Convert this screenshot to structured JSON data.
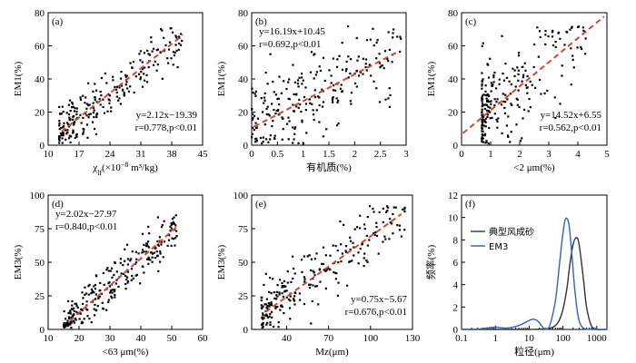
{
  "colors": {
    "fit": "#d9442a",
    "dune": "#333333",
    "em3": "#2e64b8"
  },
  "chart_data": [
    {
      "id": "a",
      "type": "scatter",
      "panel_label": "(a)",
      "xlabel": "χ",
      "xlabel_sub": "lf",
      "xlabel_rest": "(×10",
      "xlabel_sup": "−8",
      "xlabel_end": " m³/kg)",
      "ylabel": "EM1(%)",
      "xlim": [
        10,
        45
      ],
      "ylim": [
        0,
        80
      ],
      "xticks": [
        10,
        17,
        24,
        31,
        38,
        45
      ],
      "yticks": [
        0,
        20,
        40,
        60,
        80
      ],
      "fit": {
        "slope": 2.12,
        "intercept": -19.39,
        "x_range": [
          13,
          40.5
        ]
      },
      "annotation": [
        "y=2.12x−19.39",
        "r=0.778,p<0.01"
      ],
      "annotation_pos": "bottom-right",
      "cluster": {
        "n": 240,
        "x_range": [
          12.5,
          40.5
        ],
        "noise": 7.5,
        "x_skew": 1.7
      }
    },
    {
      "id": "b",
      "type": "scatter",
      "panel_label": "(b)",
      "xlabel": "有机质(%)",
      "ylabel": "EM1(%)",
      "xlim": [
        0,
        3.0
      ],
      "ylim": [
        0,
        80
      ],
      "xticks": [
        0,
        0.5,
        1.0,
        1.5,
        2.0,
        2.5,
        3.0
      ],
      "yticks": [
        0,
        20,
        40,
        60,
        80
      ],
      "fit": {
        "slope": 16.19,
        "intercept": 10.45,
        "x_range": [
          0.05,
          2.85
        ]
      },
      "annotation": [
        "y=16.19x+10.45",
        "r=0.692,p<0.01"
      ],
      "annotation_pos": "top-left",
      "cluster": {
        "n": 240,
        "x_range": [
          0.0,
          2.9
        ],
        "noise": 12,
        "x_skew": 1.4
      }
    },
    {
      "id": "c",
      "type": "scatter",
      "panel_label": "(c)",
      "xlabel": "<2 μm(%)",
      "ylabel": "EM1(%)",
      "xlim": [
        0,
        5
      ],
      "ylim": [
        0,
        80
      ],
      "xticks": [
        0,
        1,
        2,
        3,
        4,
        5
      ],
      "yticks": [
        0,
        20,
        40,
        60,
        80
      ],
      "fit": {
        "slope": 14.52,
        "intercept": 6.55,
        "x_range": [
          0.05,
          4.9
        ]
      },
      "annotation": [
        "y=14.52x+6.55",
        "r=0.562,p<0.01"
      ],
      "annotation_pos": "bottom-right",
      "cluster": {
        "n": 230,
        "x_range": [
          0.7,
          4.3
        ],
        "noise": 14,
        "x_skew": 2.6
      }
    },
    {
      "id": "d",
      "type": "scatter",
      "panel_label": "(d)",
      "xlabel": "<63 μm(%)",
      "ylabel": "EM3(%)",
      "xlim": [
        10,
        60
      ],
      "ylim": [
        0,
        100
      ],
      "xticks": [
        10,
        20,
        30,
        40,
        50,
        60
      ],
      "yticks": [
        0,
        25,
        50,
        75,
        100
      ],
      "fit": {
        "slope": 2.02,
        "intercept": -27.97,
        "x_range": [
          17,
          51.5
        ]
      },
      "annotation": [
        "y=2.02x−27.97",
        "r=0.840,p<0.01"
      ],
      "annotation_pos": "top-left",
      "cluster": {
        "n": 260,
        "x_range": [
          15,
          52
        ],
        "noise": 8,
        "x_skew": 1.3
      }
    },
    {
      "id": "e",
      "type": "scatter",
      "panel_label": "(e)",
      "xlabel": "Mz(μm)",
      "ylabel": "EM3(%)",
      "xlim": [
        15,
        130
      ],
      "ylim": [
        0,
        100
      ],
      "xticks": [
        40,
        70,
        100,
        130
      ],
      "yticks": [
        0,
        25,
        50,
        75,
        100
      ],
      "fit": {
        "slope": 0.75,
        "intercept": -5.67,
        "x_range": [
          25,
          122
        ]
      },
      "annotation": [
        "y=0.75x−5.67",
        "r=0.676,p<0.01"
      ],
      "annotation_pos": "bottom-right",
      "cluster": {
        "n": 240,
        "x_range": [
          22,
          125
        ],
        "noise": 12,
        "x_skew": 1.6
      }
    },
    {
      "id": "f",
      "type": "line",
      "panel_label": "(f)",
      "xlabel": "粒径(μm)",
      "ylabel": "频率(%)",
      "xscale": "log",
      "xlim": [
        0.1,
        2000
      ],
      "ylim": [
        0,
        12
      ],
      "xticks": [
        0.1,
        1,
        10,
        100,
        1000
      ],
      "xtick_labels": [
        "0.1",
        "1",
        "10",
        "100",
        "1000"
      ],
      "yticks": [
        0,
        2,
        4,
        6,
        8,
        10,
        12
      ],
      "legend_position": "top-left",
      "series": [
        {
          "name": "典型风成砂",
          "color_key": "dune",
          "x": [
            0.1,
            0.5,
            1,
            2,
            5,
            10,
            20,
            40,
            60,
            80,
            100,
            130,
            160,
            200,
            250,
            300,
            400,
            500,
            700,
            1000,
            2000
          ],
          "y": [
            0,
            0,
            0,
            0,
            0,
            0,
            0.02,
            0.1,
            0.35,
            0.9,
            1.8,
            3.6,
            5.8,
            7.6,
            8.2,
            7.6,
            4.6,
            2.0,
            0.3,
            0,
            0
          ]
        },
        {
          "name": "EM3",
          "color_key": "em3",
          "x": [
            0.1,
            0.3,
            0.6,
            1,
            1.5,
            2,
            3,
            5,
            8,
            12,
            16,
            20,
            25,
            30,
            40,
            60,
            80,
            100,
            120,
            150,
            180,
            220,
            280,
            350,
            450,
            600,
            1000,
            2000
          ],
          "y": [
            0,
            0.02,
            0.15,
            0.2,
            0.15,
            0.12,
            0.18,
            0.35,
            0.65,
            0.9,
            0.85,
            0.6,
            0.2,
            0.05,
            0.3,
            2.6,
            6.0,
            8.6,
            9.9,
            9.4,
            7.0,
            3.8,
            1.2,
            0.3,
            0.05,
            0,
            0,
            0
          ]
        }
      ]
    }
  ]
}
